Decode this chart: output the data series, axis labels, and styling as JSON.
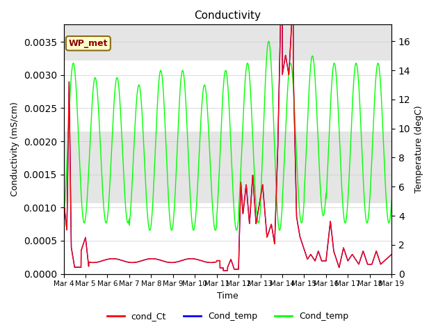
{
  "title": "Conductivity",
  "xlabel": "Time",
  "ylabel_left": "Conductivity (mS/cm)",
  "ylabel_right": "Temperature (degC)",
  "xlim": [
    0,
    15
  ],
  "ylim_left": [
    0,
    0.00376
  ],
  "ylim_right": [
    0,
    17.15
  ],
  "xtick_labels": [
    "Mar 4",
    "Mar 5",
    "Mar 6",
    "Mar 7",
    "Mar 8",
    "Mar 9",
    "Mar 10",
    "Mar 11",
    "Mar 12",
    "Mar 13",
    "Mar 14",
    "Mar 15",
    "Mar 16",
    "Mar 17",
    "Mar 18",
    "Mar 19"
  ],
  "legend_labels": [
    "cond_Ct",
    "Cond_temp",
    "Cond_temp"
  ],
  "legend_colors": [
    "red",
    "blue",
    "lime"
  ],
  "annotation_text": "WP_met",
  "annotation_color": "#8b0000",
  "annotation_bg": "#ffffcc",
  "annotation_border": "#8b6914",
  "band1_lo": 0.00107,
  "band1_hi": 0.00215,
  "band2_lo": 0.00322,
  "band2_hi": 0.00376,
  "band_color": "#d0d0d0",
  "band_alpha": 0.55,
  "figsize": [
    6.4,
    4.8
  ],
  "dpi": 100
}
